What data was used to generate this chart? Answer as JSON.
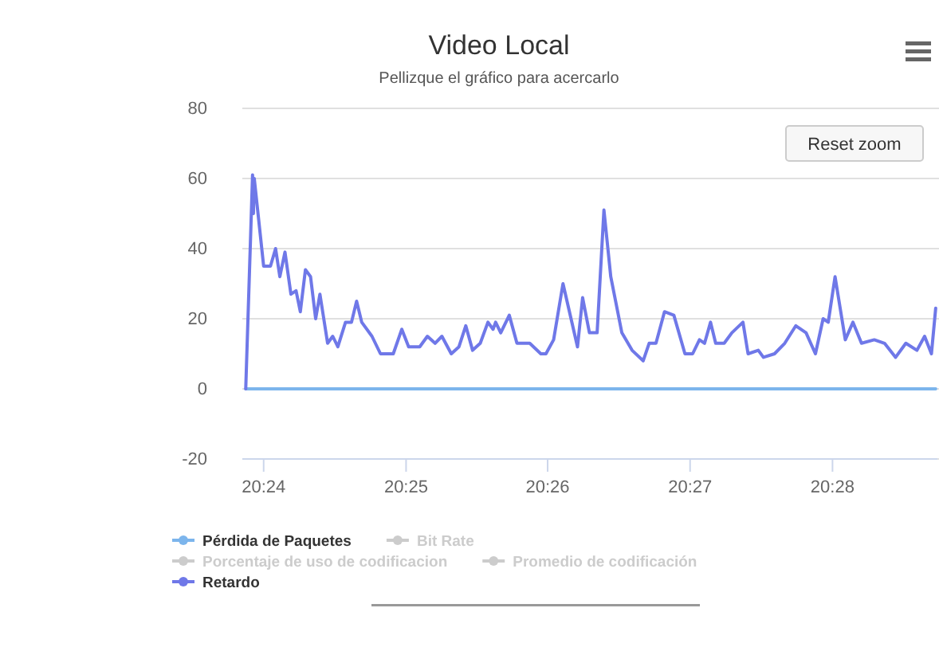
{
  "chart_data": {
    "type": "line",
    "title": "Video Local",
    "subtitle": "Pellizque el gráfico para acercarlo",
    "annotations": [
      "Reset zoom"
    ],
    "xlim": [
      20.3975,
      20.479
    ],
    "xticks": [
      {
        "value": 20.4,
        "label": "20:24"
      },
      {
        "value": 20.4167,
        "label": "20:25"
      },
      {
        "value": 20.4333,
        "label": "20:26"
      },
      {
        "value": 20.45,
        "label": "20:27"
      },
      {
        "value": 20.4667,
        "label": "20:28"
      }
    ],
    "ylim": [
      -20,
      80
    ],
    "yticks": [
      -20,
      0,
      20,
      40,
      60,
      80
    ],
    "grid": "y",
    "legend": "bottom left",
    "line_style": "solid",
    "series": [
      {
        "name": "Pérdida de Paquetes",
        "color": "#7cb5ec",
        "x": [
          20.3979,
          20.4788
        ],
        "values": [
          0,
          0
        ]
      },
      {
        "name": "Bit Rate",
        "color": "#cccccc"
      },
      {
        "name": "Porcentaje de uso de codificacion",
        "color": "#cccccc"
      },
      {
        "name": "Promedio de codificación",
        "color": "#cccccc"
      },
      {
        "name": "Retardo",
        "color": "#6f78e8",
        "x": [
          20.3979,
          20.3987,
          20.3988,
          20.3989,
          20.4,
          20.4008,
          20.4014,
          20.4019,
          20.4025,
          20.4032,
          20.4038,
          20.4043,
          20.4049,
          20.4055,
          20.4061,
          20.4066,
          20.4075,
          20.4081,
          20.4087,
          20.4096,
          20.4103,
          20.4109,
          20.4115,
          20.4127,
          20.4137,
          20.4152,
          20.4162,
          20.417,
          20.4183,
          20.4192,
          20.4201,
          20.4209,
          20.422,
          20.4229,
          20.4237,
          20.4245,
          20.4254,
          20.4263,
          20.4269,
          20.4272,
          20.4278,
          20.4288,
          20.4297,
          20.4312,
          20.4325,
          20.4331,
          20.434,
          20.4351,
          20.4368,
          20.4374,
          20.4382,
          20.4391,
          20.4399,
          20.4407,
          20.442,
          20.4432,
          20.4445,
          20.4452,
          20.446,
          20.447,
          20.4481,
          20.4494,
          20.4503,
          20.4511,
          20.4517,
          20.4524,
          20.453,
          20.454,
          20.4549,
          20.4562,
          20.4568,
          20.458,
          20.4586,
          20.4599,
          20.4611,
          20.4624,
          20.4636,
          20.4647,
          20.4656,
          20.4662,
          20.467,
          20.4682,
          20.4691,
          20.4701,
          20.4716,
          20.4728,
          20.4741,
          20.4753,
          20.4766,
          20.4775,
          20.4783,
          20.4788
        ],
        "values": [
          0,
          61,
          50,
          60,
          35,
          35,
          40,
          32,
          39,
          27,
          28,
          22,
          34,
          32,
          20,
          27,
          13,
          15,
          12,
          19,
          19,
          25,
          19,
          15,
          10,
          10,
          17,
          12,
          12,
          15,
          13,
          15,
          10,
          12,
          18,
          11,
          13,
          19,
          17,
          19,
          16,
          21,
          13,
          13,
          10,
          10,
          14,
          30,
          12,
          26,
          16,
          16,
          51,
          32,
          16,
          11,
          8,
          13,
          13,
          22,
          21,
          10,
          10,
          14,
          13,
          19,
          13,
          13,
          16,
          19,
          10,
          11,
          9,
          10,
          13,
          18,
          16,
          10,
          20,
          19,
          32,
          14,
          19,
          13,
          14,
          13,
          9,
          13,
          11,
          15,
          10,
          23
        ]
      }
    ]
  }
}
